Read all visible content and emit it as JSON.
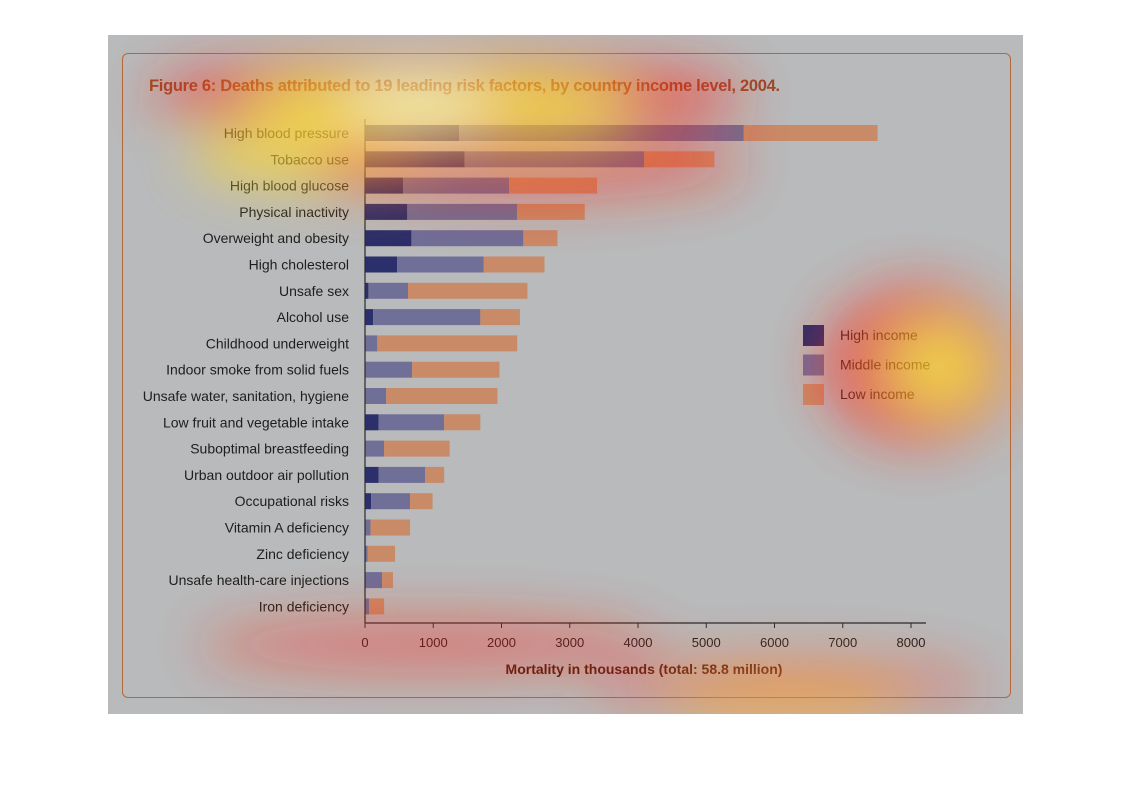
{
  "title": "Figure 6: Deaths attributed to 19 leading risk factors, by country income level, 2004.",
  "chart_data": {
    "type": "bar",
    "orientation": "horizontal",
    "stacked": true,
    "categories": [
      "High blood pressure",
      "Tobacco use",
      "High blood glucose",
      "Physical inactivity",
      "Overweight and obesity",
      "High cholesterol",
      "Unsafe sex",
      "Alcohol use",
      "Childhood underweight",
      "Indoor smoke from solid fuels",
      "Unsafe water, sanitation, hygiene",
      "Low fruit and vegetable intake",
      "Suboptimal breastfeeding",
      "Urban outdoor air pollution",
      "Occupational risks",
      "Vitamin A deficiency",
      "Zinc deficiency",
      "Unsafe health-care injections",
      "Iron deficiency"
    ],
    "series": [
      {
        "name": "High income",
        "color": "#2b2f6b",
        "values": [
          1380,
          1460,
          560,
          620,
          680,
          470,
          50,
          120,
          0,
          0,
          0,
          200,
          0,
          200,
          90,
          0,
          0,
          0,
          0
        ]
      },
      {
        "name": "Middle income",
        "color": "#6f6f98",
        "values": [
          4170,
          2630,
          1550,
          1610,
          1640,
          1270,
          580,
          1570,
          180,
          690,
          310,
          960,
          280,
          680,
          570,
          80,
          40,
          250,
          60
        ]
      },
      {
        "name": "Low income",
        "color": "#c98a68",
        "values": [
          1960,
          1030,
          1290,
          990,
          500,
          890,
          1750,
          580,
          2050,
          1280,
          1630,
          530,
          960,
          280,
          330,
          580,
          400,
          160,
          220
        ]
      }
    ],
    "xlabel": "Mortality in thousands (total: 58.8 million)",
    "ylabel": "",
    "xlim": [
      0,
      8000
    ],
    "xticks": [
      0,
      1000,
      2000,
      3000,
      4000,
      5000,
      6000,
      7000,
      8000
    ],
    "tick_labels": [
      "0",
      "1000",
      "2000",
      "3000",
      "4000",
      "5000",
      "6000",
      "7000",
      "8000"
    ],
    "legend_position": "right",
    "grid": false
  },
  "colors": {
    "background": "#b9babb",
    "frame": "#b4693a",
    "title": "#9a4a2a",
    "axis": "#2a2a2a"
  }
}
